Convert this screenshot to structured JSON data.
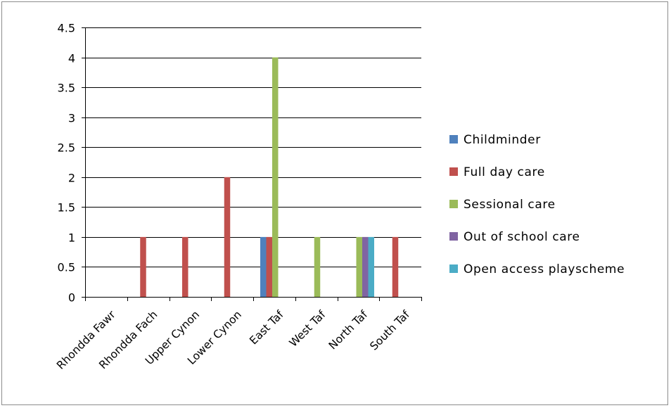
{
  "chart_data": {
    "type": "bar",
    "title": "",
    "xlabel": "",
    "ylabel": "",
    "categories": [
      "Rhondda Fawr",
      "Rhondda Fach",
      "Upper Cynon",
      "Lower Cynon",
      "East Taf",
      "West Taf",
      "North Taf",
      "South Taf"
    ],
    "y_ticks": [
      "0",
      "0.5",
      "1",
      "1.5",
      "2",
      "2.5",
      "3",
      "3.5",
      "4",
      "4.5"
    ],
    "ylim": [
      0,
      4.5
    ],
    "grid": true,
    "legend_position": "right",
    "series": [
      {
        "name": "Childminder",
        "color": "#4f81bd",
        "values": [
          0,
          0,
          0,
          0,
          1,
          0,
          0,
          0
        ]
      },
      {
        "name": "Full day care",
        "color": "#c0504d",
        "values": [
          0,
          1,
          1,
          2,
          1,
          0,
          0,
          1
        ]
      },
      {
        "name": "Sessional care",
        "color": "#9bbb59",
        "values": [
          0,
          0,
          0,
          0,
          4,
          1,
          1,
          0
        ]
      },
      {
        "name": "Out of school care",
        "color": "#8064a2",
        "values": [
          0,
          0,
          0,
          0,
          0,
          0,
          1,
          0
        ]
      },
      {
        "name": "Open access playscheme",
        "color": "#4bacc6",
        "values": [
          0,
          0,
          0,
          0,
          0,
          0,
          1,
          0
        ]
      }
    ]
  }
}
